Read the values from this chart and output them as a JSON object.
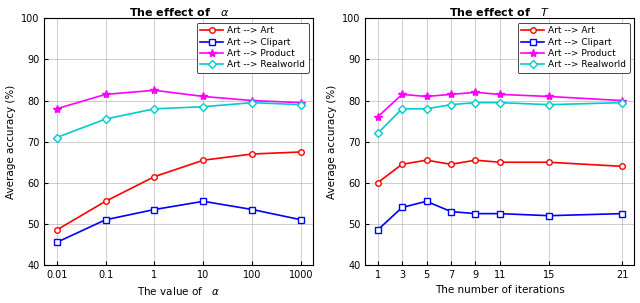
{
  "plot1": {
    "title": "The effect of",
    "title_param": "α",
    "xlabel": "The value of",
    "xlabel_param": "α",
    "ylabel": "Average accuracy (%)",
    "x_labels": [
      "0.01",
      "0.1",
      "1",
      "10",
      "100",
      "1000"
    ],
    "ylim": [
      40,
      100
    ],
    "yticks": [
      40,
      50,
      60,
      70,
      80,
      90,
      100
    ],
    "series": [
      {
        "label": "Art --> Art",
        "color": "#ff0000",
        "marker": "o",
        "data": [
          48.5,
          55.5,
          61.5,
          65.5,
          67.0,
          67.5
        ]
      },
      {
        "label": "Art --> Clipart",
        "color": "#0000ff",
        "marker": "s",
        "data": [
          45.5,
          51.0,
          53.5,
          55.5,
          53.5,
          51.0
        ]
      },
      {
        "label": "Art --> Product",
        "color": "#ff00ff",
        "marker": "*",
        "data": [
          78.0,
          81.5,
          82.5,
          81.0,
          80.0,
          79.5
        ]
      },
      {
        "label": "Art --> Realworld",
        "color": "#00cccc",
        "marker": "D",
        "data": [
          71.0,
          75.5,
          78.0,
          78.5,
          79.5,
          79.0
        ]
      }
    ]
  },
  "plot2": {
    "title": "The effect of",
    "title_param": "T",
    "xlabel": "The number of iterations",
    "ylabel": "Average accuracy (%)",
    "x_vals": [
      1,
      3,
      5,
      7,
      9,
      11,
      15,
      21
    ],
    "ylim": [
      40,
      100
    ],
    "yticks": [
      40,
      50,
      60,
      70,
      80,
      90,
      100
    ],
    "series": [
      {
        "label": "Art --> Art",
        "color": "#ff0000",
        "marker": "o",
        "data": [
          60.0,
          64.5,
          65.5,
          64.5,
          65.5,
          65.0,
          65.0,
          64.0
        ]
      },
      {
        "label": "Art --> Clipart",
        "color": "#0000ff",
        "marker": "s",
        "data": [
          48.5,
          54.0,
          55.5,
          53.0,
          52.5,
          52.5,
          52.0,
          52.5
        ]
      },
      {
        "label": "Art --> Product",
        "color": "#ff00ff",
        "marker": "*",
        "data": [
          76.0,
          81.5,
          81.0,
          81.5,
          82.0,
          81.5,
          81.0,
          80.0
        ]
      },
      {
        "label": "Art --> Realworld",
        "color": "#00cccc",
        "marker": "D",
        "data": [
          72.0,
          78.0,
          78.0,
          79.0,
          79.5,
          79.5,
          79.0,
          79.5
        ]
      }
    ]
  }
}
